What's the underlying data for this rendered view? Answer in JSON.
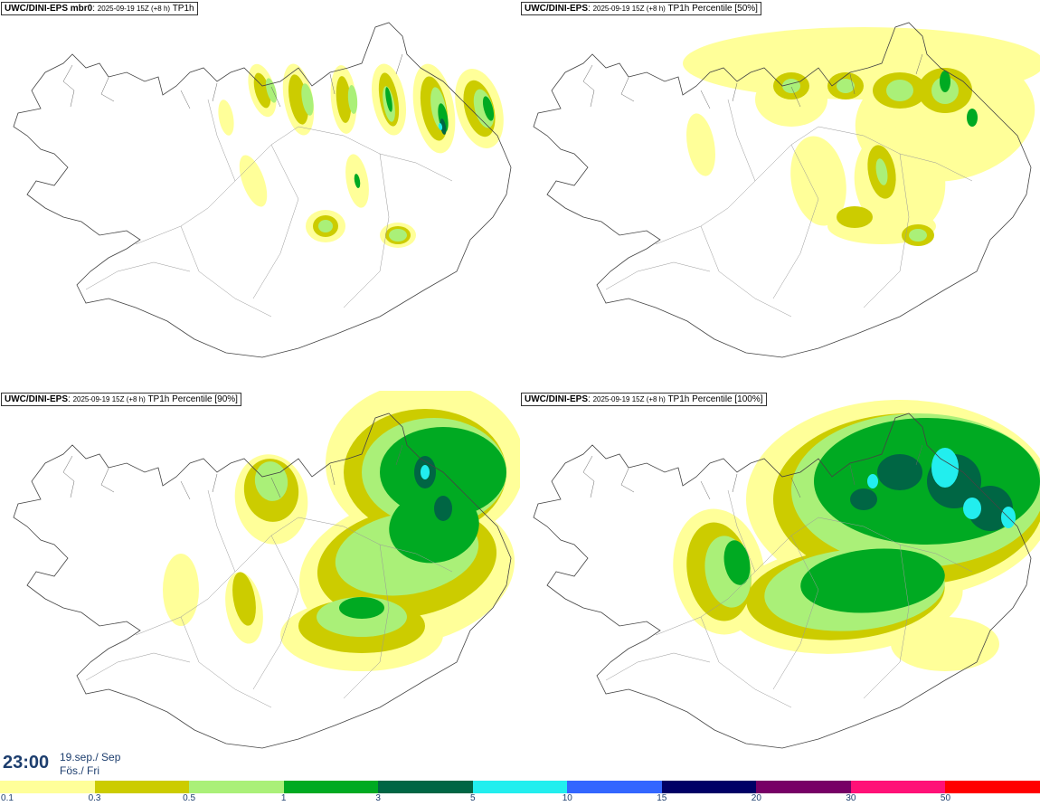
{
  "panels": [
    {
      "id": "tl",
      "model": "UWC/DINI-EPS mbr0",
      "date": "2025-09-19 15Z (+8 h)",
      "product": "TP1h"
    },
    {
      "id": "tr",
      "model": "UWC/DINI-EPS",
      "date": "2025-09-19 15Z (+8 h)",
      "product": "TP1h Percentile [50%]"
    },
    {
      "id": "bl",
      "model": "UWC/DINI-EPS",
      "date": "2025-09-19 15Z (+8 h)",
      "product": "TP1h Percentile [90%]"
    },
    {
      "id": "br",
      "model": "UWC/DINI-EPS",
      "date": "2025-09-19 15Z (+8 h)",
      "product": "TP1h Percentile [100%]"
    }
  ],
  "valid_time": {
    "time": "23:00",
    "date_line1": "19.sep./ Sep",
    "date_line2": "Fös./ Fri"
  },
  "colorbar": {
    "labels": [
      "0.1",
      "0.3",
      "0.5",
      "1",
      "3",
      "5",
      "10",
      "15",
      "20",
      "30",
      "50"
    ],
    "colors": [
      "#ffff99",
      "#cccc00",
      "#aaf078",
      "#00aa22",
      "#006644",
      "#22eeee",
      "#3366ff",
      "#000066",
      "#770066",
      "#ff1177",
      "#ff0000"
    ]
  }
}
